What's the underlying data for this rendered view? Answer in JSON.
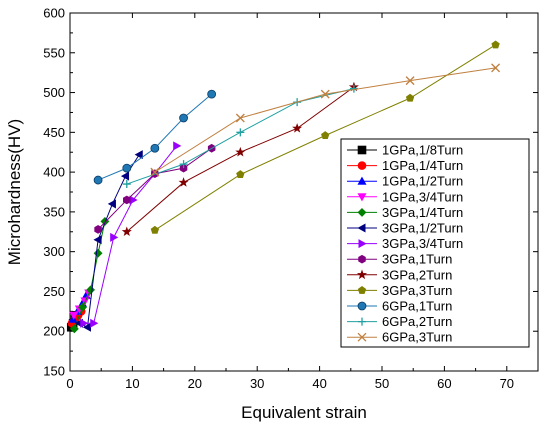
{
  "chart_data": {
    "type": "scatter",
    "title": "",
    "xlabel": "Equivalent strain",
    "ylabel": "Microhardness(HV)",
    "xlim": [
      0,
      75
    ],
    "ylim": [
      150,
      600
    ],
    "x_ticks": [
      0,
      10,
      20,
      30,
      40,
      50,
      60,
      70
    ],
    "y_ticks": [
      150,
      200,
      250,
      300,
      350,
      400,
      450,
      500,
      550,
      600
    ],
    "grid": false,
    "legend_position": "right-middle",
    "series": [
      {
        "name": "1GPa,1/8Turn",
        "color": "#000000",
        "marker": "square",
        "x": [
          0.2,
          0.5,
          0.8,
          1.0
        ],
        "y": [
          205,
          210,
          215,
          220
        ]
      },
      {
        "name": "1GPa,1/4Turn",
        "color": "#ff0000",
        "marker": "circle",
        "x": [
          0.3,
          0.8,
          1.3,
          1.8
        ],
        "y": [
          210,
          215,
          220,
          225
        ]
      },
      {
        "name": "1GPa,1/2Turn",
        "color": "#0000ff",
        "marker": "triangle-up",
        "x": [
          0.5,
          1.2,
          2.0,
          2.6
        ],
        "y": [
          215,
          225,
          235,
          245
        ]
      },
      {
        "name": "1GPa,3/4Turn",
        "color": "#ff00ff",
        "marker": "triangle-down",
        "x": [
          0.6,
          1.5,
          2.4,
          3.0
        ],
        "y": [
          220,
          228,
          238,
          248
        ]
      },
      {
        "name": "3GPa,1/4Turn",
        "color": "#008000",
        "marker": "diamond",
        "x": [
          0.7,
          2.0,
          3.3,
          4.5,
          5.6
        ],
        "y": [
          203,
          230,
          252,
          298,
          338
        ]
      },
      {
        "name": "3GPa,1/2Turn",
        "color": "#000080",
        "marker": "triangle-left",
        "x": [
          1.5,
          2.8,
          4.5,
          6.8,
          8.9,
          11.1
        ],
        "y": [
          210,
          205,
          315,
          360,
          395,
          422
        ]
      },
      {
        "name": "3GPa,3/4Turn",
        "color": "#9900ff",
        "marker": "triangle-right",
        "x": [
          2.2,
          3.8,
          7.0,
          10.1,
          13.6,
          17.1
        ],
        "y": [
          210,
          210,
          318,
          365,
          398,
          433
        ]
      },
      {
        "name": "3GPa,1Turn",
        "color": "#800080",
        "marker": "hexagon",
        "x": [
          4.5,
          9.1,
          13.6,
          18.2,
          22.7
        ],
        "y": [
          328,
          365,
          398,
          405,
          430
        ]
      },
      {
        "name": "3GPa,2Turn",
        "color": "#800000",
        "marker": "star",
        "x": [
          9.1,
          18.2,
          27.3,
          36.4,
          45.5
        ],
        "y": [
          325,
          387,
          425,
          455,
          507
        ]
      },
      {
        "name": "3GPa,3Turn",
        "color": "#808000",
        "marker": "pentagon",
        "x": [
          13.6,
          27.3,
          40.9,
          54.5,
          68.2
        ],
        "y": [
          327,
          397,
          446,
          493,
          560
        ]
      },
      {
        "name": "6GPa,1Turn",
        "color": "#1f77b4",
        "marker": "circle-ball",
        "x": [
          4.5,
          9.1,
          13.6,
          18.2,
          22.7
        ],
        "y": [
          390,
          405,
          430,
          468,
          498
        ]
      },
      {
        "name": "6GPa,2Turn",
        "color": "#20a0a0",
        "marker": "plus",
        "x": [
          9.1,
          18.2,
          27.3,
          36.4,
          45.5
        ],
        "y": [
          385,
          410,
          450,
          488,
          505
        ]
      },
      {
        "name": "6GPa,3Turn",
        "color": "#c08040",
        "marker": "x",
        "x": [
          13.6,
          27.3,
          40.9,
          54.5,
          68.2
        ],
        "y": [
          400,
          468,
          498,
          515,
          531
        ]
      }
    ]
  }
}
